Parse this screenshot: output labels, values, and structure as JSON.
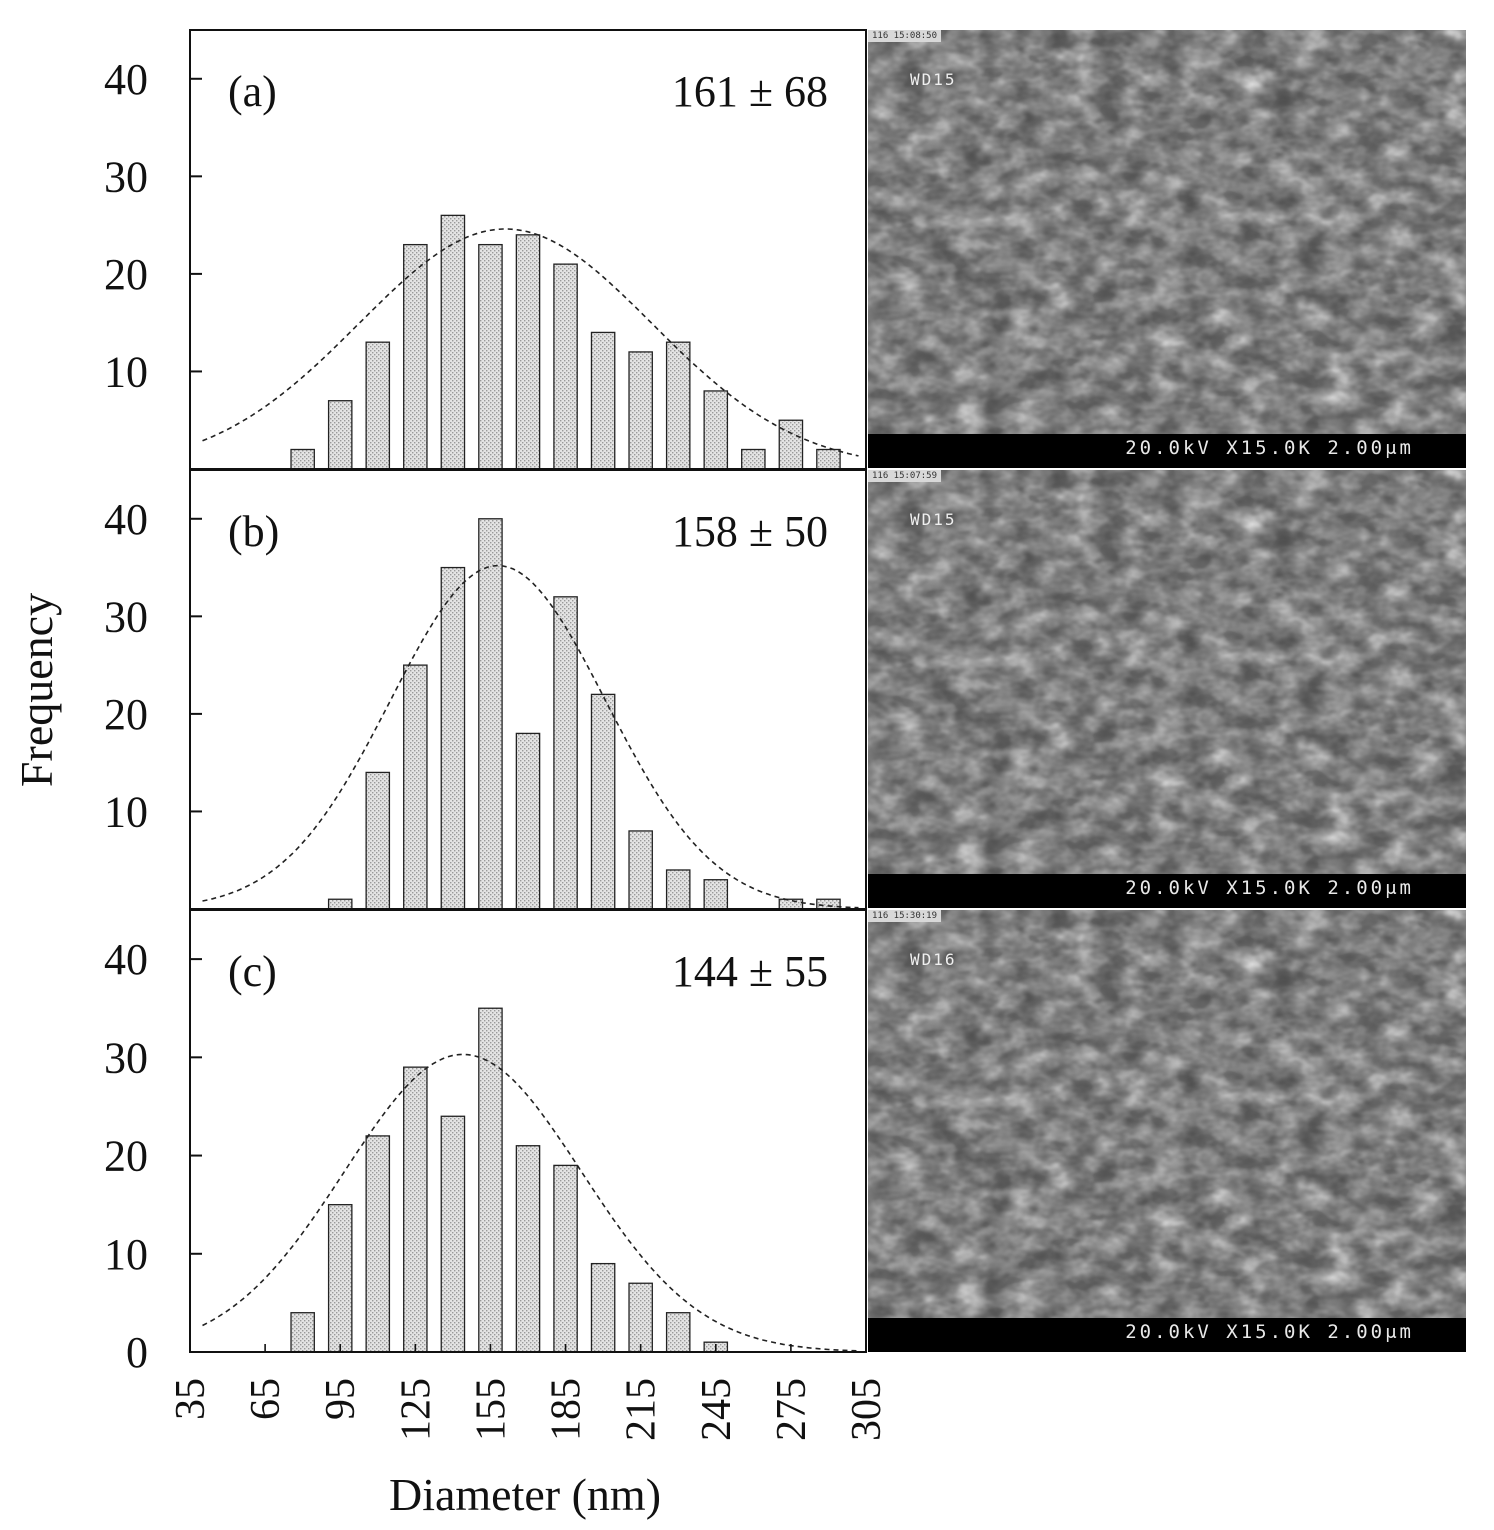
{
  "chart_data": {
    "type": "bar",
    "ylabel": "Frequency",
    "xlabel": "Diameter (nm)",
    "x_ticks": [
      35,
      65,
      95,
      125,
      155,
      185,
      215,
      245,
      275,
      305
    ],
    "xlim": [
      35,
      305
    ],
    "ylim": [
      0,
      45
    ],
    "y_ticks": [
      0,
      10,
      20,
      30,
      40
    ],
    "bin_centers": [
      80,
      95,
      110,
      125,
      140,
      155,
      170,
      185,
      200,
      215,
      230,
      245,
      260,
      275,
      290
    ],
    "panels": [
      {
        "label": "(a)",
        "annotation": "161 ± 68",
        "values": [
          2,
          7,
          13,
          23,
          26,
          23,
          24,
          21,
          14,
          12,
          13,
          8,
          2,
          5,
          2
        ],
        "fit": {
          "mean": 161,
          "std": 68,
          "peak": 24.6
        },
        "y_ticks_shown": [
          10,
          20,
          30,
          40
        ]
      },
      {
        "label": "(b)",
        "annotation": "158 ± 50",
        "values": [
          0,
          1,
          14,
          25,
          35,
          40,
          18,
          32,
          22,
          8,
          4,
          3,
          0,
          1,
          1
        ],
        "fit": {
          "mean": 158,
          "std": 50,
          "peak": 35.2
        },
        "y_ticks_shown": [
          10,
          20,
          30,
          40
        ]
      },
      {
        "label": "(c)",
        "annotation": "144 ± 55",
        "values": [
          4,
          15,
          22,
          29,
          24,
          35,
          21,
          19,
          9,
          7,
          4,
          1,
          0,
          0,
          0
        ],
        "fit": {
          "mean": 144,
          "std": 55,
          "peak": 30.3
        },
        "y_ticks_shown": [
          0,
          10,
          20,
          30,
          40
        ]
      }
    ]
  },
  "sem_images": [
    {
      "wd": "WD15",
      "stamp": "116 15:08:50",
      "scale_bar": "20.0kV X15.0K 2.00μm"
    },
    {
      "wd": "WD15",
      "stamp": "116 15:07:59",
      "scale_bar": "20.0kV X15.0K 2.00μm"
    },
    {
      "wd": "WD16",
      "stamp": "116 15:30:19",
      "scale_bar": "20.0kV X15.0K 2.00μm"
    }
  ]
}
